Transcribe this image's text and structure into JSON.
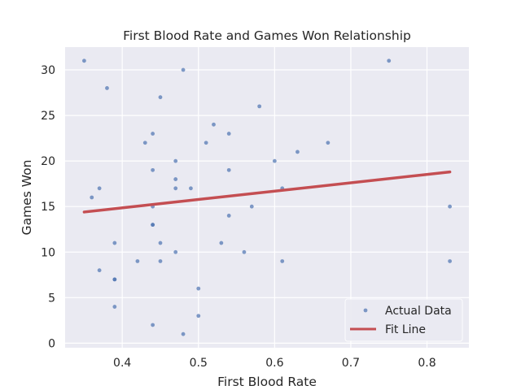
{
  "chart_data": {
    "type": "scatter",
    "title": "First Blood Rate and Games Won Relationship",
    "xlabel": "First Blood Rate",
    "ylabel": "Games Won",
    "xlim": [
      0.325,
      0.855
    ],
    "ylim": [
      -0.5,
      32.5
    ],
    "xticks": [
      0.4,
      0.5,
      0.6,
      0.7,
      0.8
    ],
    "xtick_labels": [
      "0.4",
      "0.5",
      "0.6",
      "0.7",
      "0.8"
    ],
    "yticks": [
      0,
      5,
      10,
      15,
      20,
      25,
      30
    ],
    "ytick_labels": [
      "0",
      "5",
      "10",
      "15",
      "20",
      "25",
      "30"
    ],
    "grid": true,
    "legend_position": "bottom-right",
    "background_color": "#eaeaf2",
    "grid_color": "#ffffff",
    "series": [
      {
        "name": "Actual Data",
        "kind": "points",
        "color": "#4c72b0",
        "points": [
          [
            0.35,
            31
          ],
          [
            0.75,
            31
          ],
          [
            0.48,
            30
          ],
          [
            0.38,
            28
          ],
          [
            0.45,
            27
          ],
          [
            0.58,
            26
          ],
          [
            0.52,
            24
          ],
          [
            0.44,
            23
          ],
          [
            0.54,
            23
          ],
          [
            0.43,
            22
          ],
          [
            0.51,
            22
          ],
          [
            0.67,
            22
          ],
          [
            0.63,
            21
          ],
          [
            0.47,
            20
          ],
          [
            0.6,
            20
          ],
          [
            0.44,
            19
          ],
          [
            0.54,
            19
          ],
          [
            0.47,
            18
          ],
          [
            0.37,
            17
          ],
          [
            0.47,
            17
          ],
          [
            0.49,
            17
          ],
          [
            0.61,
            17
          ],
          [
            0.36,
            16
          ],
          [
            0.44,
            15
          ],
          [
            0.57,
            15
          ],
          [
            0.83,
            15
          ],
          [
            0.54,
            14
          ],
          [
            0.44,
            13
          ],
          [
            0.44,
            13
          ],
          [
            0.39,
            11
          ],
          [
            0.45,
            11
          ],
          [
            0.53,
            11
          ],
          [
            0.47,
            10
          ],
          [
            0.56,
            10
          ],
          [
            0.42,
            9
          ],
          [
            0.45,
            9
          ],
          [
            0.61,
            9
          ],
          [
            0.83,
            9
          ],
          [
            0.37,
            8
          ],
          [
            0.39,
            7
          ],
          [
            0.39,
            7
          ],
          [
            0.5,
            6
          ],
          [
            0.39,
            4
          ],
          [
            0.5,
            3
          ],
          [
            0.44,
            2
          ],
          [
            0.48,
            1
          ]
        ]
      },
      {
        "name": "Fit Line",
        "kind": "line",
        "color": "#c44e52",
        "points": [
          [
            0.35,
            14.4
          ],
          [
            0.83,
            18.8
          ]
        ]
      }
    ]
  }
}
